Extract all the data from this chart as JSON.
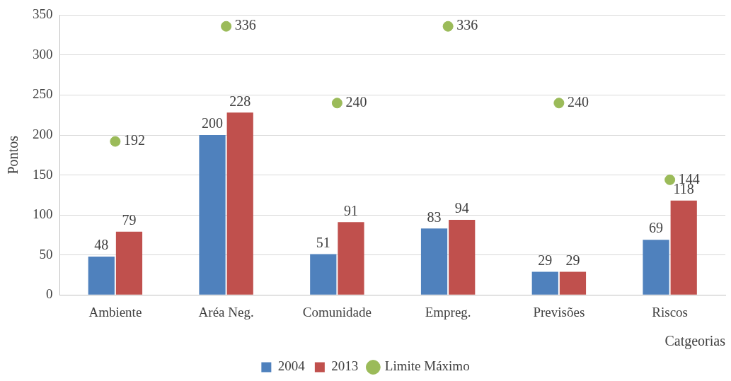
{
  "chart_data": {
    "type": "bar",
    "ylabel": "Pontos",
    "xlabel": "Catgeorias",
    "categories": [
      "Ambiente",
      "Aréa Neg.",
      "Comunidade",
      "Empreg.",
      "Previsões",
      "Riscos"
    ],
    "series": [
      {
        "name": "2004",
        "color": "#4f81bd",
        "values": [
          48,
          200,
          51,
          83,
          29,
          69
        ]
      },
      {
        "name": "2013",
        "color": "#c0504d",
        "values": [
          79,
          228,
          91,
          94,
          29,
          118
        ]
      },
      {
        "name": "Limite Máximo",
        "type": "scatter",
        "color": "#9bbb59",
        "x": [
          "Ambiente",
          "Aréa Neg.",
          "Comunidade",
          "Empreg.",
          "Previsões",
          "Riscos"
        ],
        "values": [
          192,
          336,
          240,
          336,
          240,
          144
        ]
      }
    ],
    "ylim": [
      0,
      350
    ],
    "yticks": [
      0,
      50,
      100,
      150,
      200,
      250,
      300,
      350
    ],
    "grid": "y",
    "legend": "bottom",
    "data_labels": true,
    "marker": "circle"
  }
}
